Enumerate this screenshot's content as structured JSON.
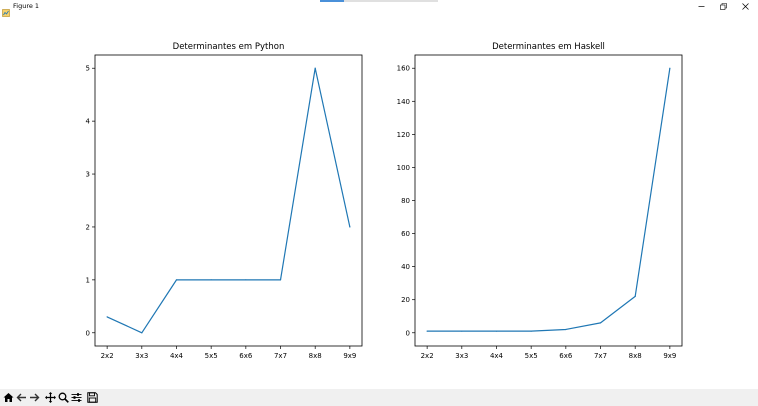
{
  "window": {
    "title": "Figure 1",
    "progress_fraction": 0.2,
    "controls": [
      "minimize-icon",
      "restore-icon",
      "close-icon"
    ]
  },
  "toolbar": {
    "tools": [
      "home-icon",
      "back-arrow-icon",
      "forward-arrow-icon",
      "pan-icon",
      "zoom-icon",
      "configure-subplots-icon",
      "save-icon"
    ]
  },
  "colors": {
    "line": "#1f77b4",
    "toolbar_bg": "#f0f0f0",
    "background": "#ffffff"
  },
  "chart_data": [
    {
      "type": "line",
      "title": "Determinantes em Python",
      "categories": [
        "2x2",
        "3x3",
        "4x4",
        "5x5",
        "6x6",
        "7x7",
        "8x8",
        "9x9"
      ],
      "values": [
        0.3,
        0,
        1,
        1,
        1,
        1,
        5,
        2
      ],
      "ylim": [
        -0.25,
        5.25
      ],
      "yticks": [
        0,
        1,
        2,
        3,
        4,
        5
      ],
      "xlabel": "",
      "ylabel": "",
      "grid": false
    },
    {
      "type": "line",
      "title": "Determinantes em Haskell",
      "categories": [
        "2x2",
        "3x3",
        "4x4",
        "5x5",
        "6x6",
        "7x7",
        "8x8",
        "9x9"
      ],
      "values": [
        1,
        1,
        1,
        1,
        2,
        6,
        22,
        160
      ],
      "ylim": [
        -8,
        168
      ],
      "yticks": [
        0,
        20,
        40,
        60,
        80,
        100,
        120,
        140,
        160
      ],
      "xlabel": "",
      "ylabel": "",
      "grid": false
    }
  ]
}
